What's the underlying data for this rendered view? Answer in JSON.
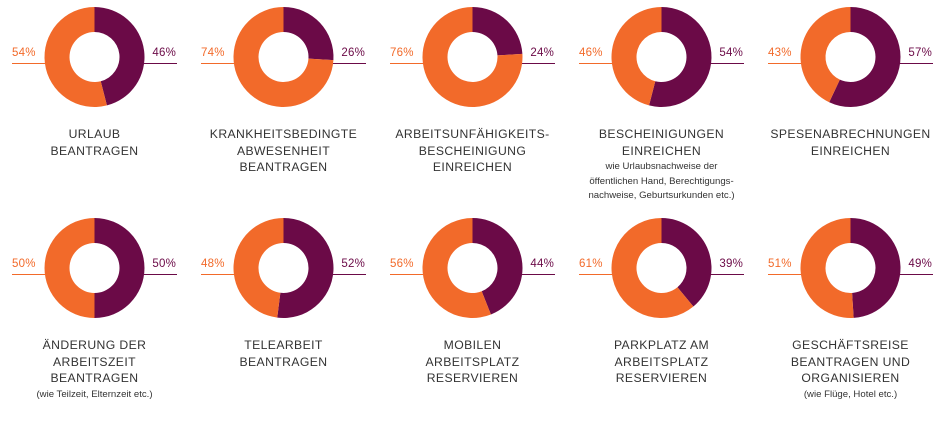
{
  "colors": {
    "orange": "#f26a2a",
    "purple": "#6b0a47"
  },
  "chart_data": {
    "type": "pie",
    "variant": "donut-grid",
    "items": [
      {
        "title": "URLAUB\nBEANTRAGEN",
        "subtitle": "",
        "left_label": "54%",
        "right_label": "46%",
        "orange": 54,
        "purple": 46
      },
      {
        "title": "KRANKHEITSBEDINGTE\nABWESENHEIT\nBEANTRAGEN",
        "subtitle": "",
        "left_label": "74%",
        "right_label": "26%",
        "orange": 74,
        "purple": 26
      },
      {
        "title": "ARBEITSUNFÄHIGKEITS-\nBESCHEINIGUNG\nEINREICHEN",
        "subtitle": "",
        "left_label": "76%",
        "right_label": "24%",
        "orange": 76,
        "purple": 24
      },
      {
        "title": "BESCHEINIGUNGEN\nEINREICHEN",
        "subtitle": "wie Urlaubsnachweise der\nöffentlichen Hand, Berechtigungs-\nnachweise, Geburtsurkunden etc.)",
        "left_label": "46%",
        "right_label": "54%",
        "orange": 46,
        "purple": 54
      },
      {
        "title": "SPESENABRECHNUNGEN\nEINREICHEN",
        "subtitle": "",
        "left_label": "43%",
        "right_label": "57%",
        "orange": 43,
        "purple": 57
      },
      {
        "title": "ÄNDERUNG DER\nARBEITSZEIT\nBEANTRAGEN",
        "subtitle": "(wie Teilzeit, Elternzeit etc.)",
        "left_label": "50%",
        "right_label": "50%",
        "orange": 50,
        "purple": 50
      },
      {
        "title": "TELEARBEIT\nBEANTRAGEN",
        "subtitle": "",
        "left_label": "48%",
        "right_label": "52%",
        "orange": 48,
        "purple": 52
      },
      {
        "title": "MOBILEN\nARBEITSPLATZ\nRESERVIEREN",
        "subtitle": "",
        "left_label": "56%",
        "right_label": "44%",
        "orange": 56,
        "purple": 44
      },
      {
        "title": "PARKPLATZ AM\nARBEITSPLATZ\nRESERVIEREN",
        "subtitle": "",
        "left_label": "61%",
        "right_label": "39%",
        "orange": 61,
        "purple": 39
      },
      {
        "title": "GESCHÄFTSREISE\nBEANTRAGEN UND\nORGANISIEREN",
        "subtitle": "(wie Flüge, Hotel etc.)",
        "left_label": "51%",
        "right_label": "49%",
        "orange": 51,
        "purple": 49
      }
    ]
  }
}
